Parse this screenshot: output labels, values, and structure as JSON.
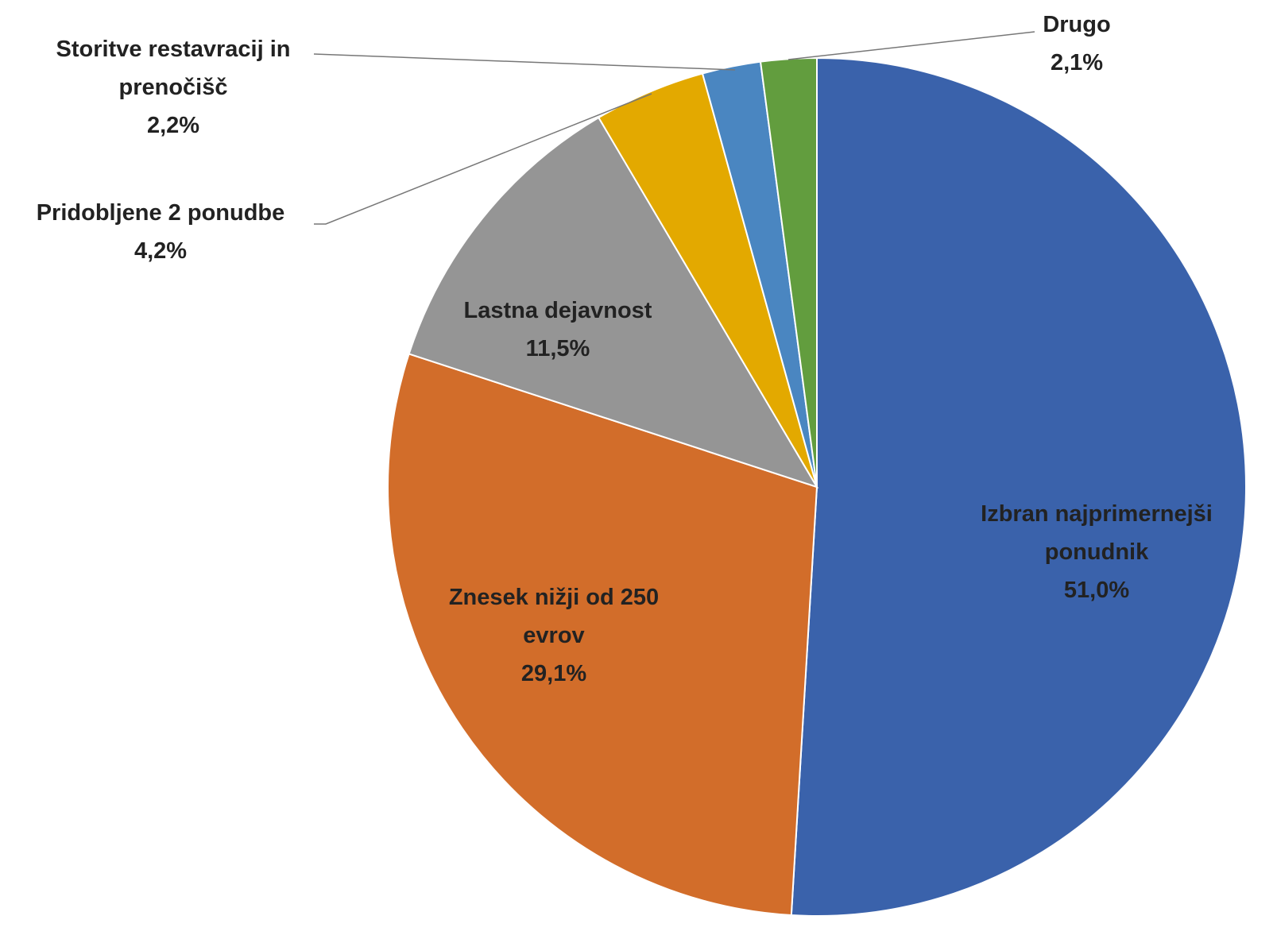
{
  "chart_data": {
    "type": "pie",
    "categories": [
      "Izbran najprimernejši ponudnik",
      "Znesek nižji od 250 evrov",
      "Lastna dejavnost",
      "Pridobljene 2 ponudbe",
      "Storitve restavracij in prenočišč",
      "Drugo"
    ],
    "values": [
      51.0,
      29.1,
      11.5,
      4.2,
      2.2,
      2.1
    ],
    "value_labels": [
      "51,0%",
      "29,1%",
      "11,5%",
      "4,2%",
      "2,2%",
      "2,1%"
    ],
    "colors": [
      "#3a62ab",
      "#d26d2a",
      "#959595",
      "#e3a900",
      "#4a86c1",
      "#629d3e"
    ]
  }
}
